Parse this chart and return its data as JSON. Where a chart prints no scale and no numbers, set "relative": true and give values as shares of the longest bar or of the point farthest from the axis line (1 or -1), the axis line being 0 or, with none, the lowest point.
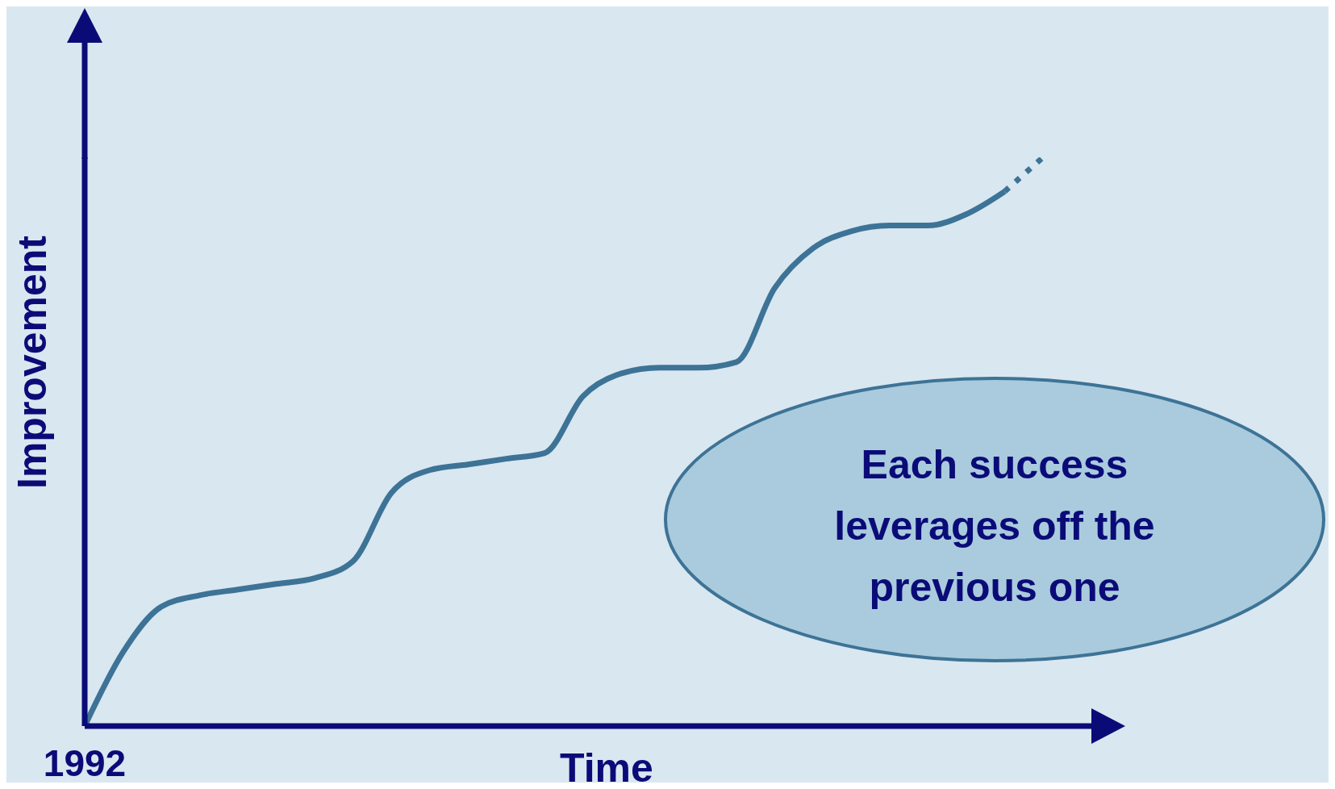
{
  "chart_data": {
    "type": "line",
    "relative": true,
    "xlabel": "Time",
    "ylabel": "Improvement",
    "marker": "none",
    "categories": [
      null,
      null,
      null,
      null,
      null,
      null,
      null,
      null,
      null,
      null,
      null,
      null,
      null,
      null,
      null,
      null,
      null,
      null,
      null,
      null,
      null,
      null,
      null,
      null,
      null,
      null
    ],
    "series": [
      {
        "color": "#3d7396",
        "line_style": "solid",
        "values": [
          0,
          0.13,
          0.21,
          0.23,
          0.24,
          0.25,
          0.26,
          0.29,
          0.41,
          0.45,
          0.46,
          0.47,
          0.48,
          0.58,
          0.62,
          0.63,
          0.63,
          0.64,
          0.77,
          0.84,
          0.87,
          0.88,
          0.88,
          0.9,
          0.94,
          null
        ]
      },
      {
        "color": "#3d7396",
        "line_style": "dotted",
        "values": [
          null,
          null,
          null,
          null,
          null,
          null,
          null,
          null,
          null,
          null,
          null,
          null,
          null,
          null,
          null,
          null,
          null,
          null,
          null,
          null,
          null,
          null,
          null,
          null,
          0.94,
          1
        ]
      }
    ],
    "annotations": [
      "Each success leverages off the previous one",
      "1992"
    ]
  }
}
